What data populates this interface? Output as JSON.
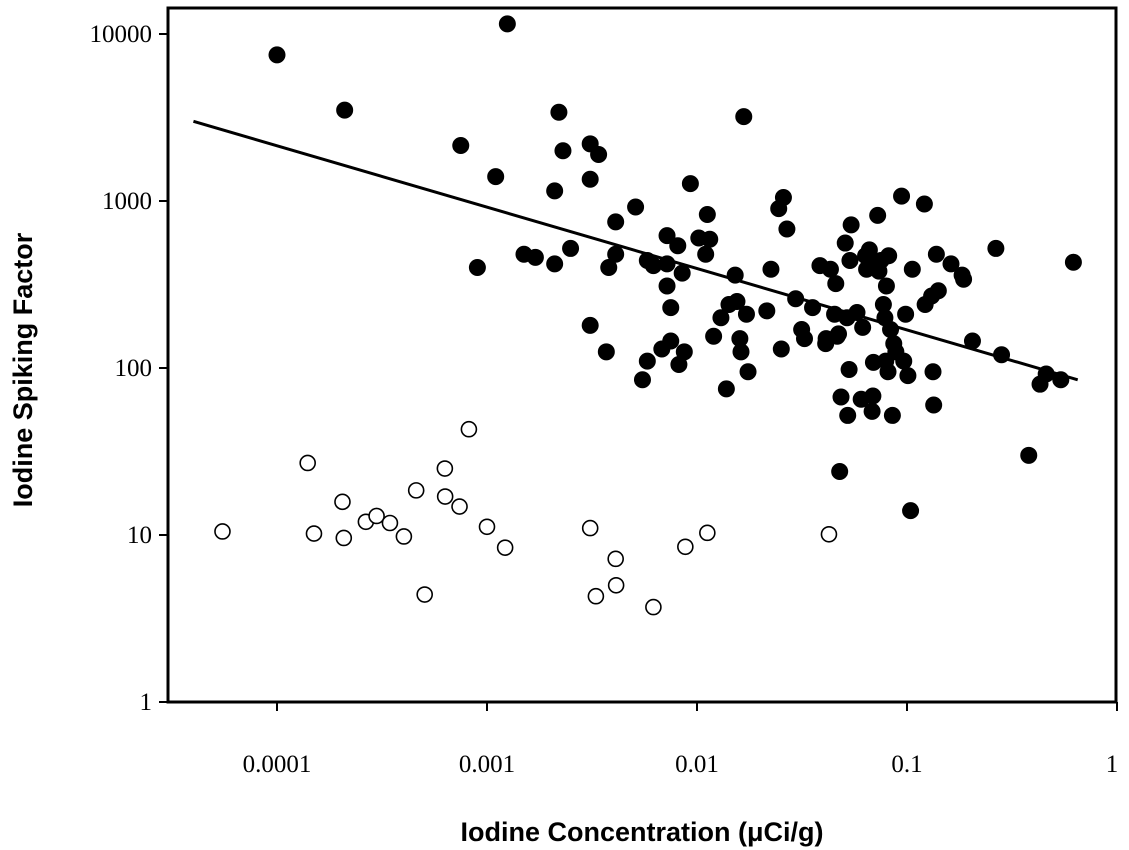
{
  "chart_data": {
    "type": "scatter",
    "xlabel": "Iodine Concentration (μCi/g)",
    "ylabel": "Iodine Spiking Factor",
    "x_scale": "log",
    "y_scale": "log",
    "xlim": [
      3e-05,
      1
    ],
    "ylim": [
      1,
      12000
    ],
    "x_ticks": [
      {
        "value": 0.0001,
        "label": "0.0001"
      },
      {
        "value": 0.001,
        "label": "0.001"
      },
      {
        "value": 0.01,
        "label": "0.01"
      },
      {
        "value": 0.1,
        "label": "0.1"
      },
      {
        "value": 1,
        "label": "1"
      }
    ],
    "y_ticks": [
      {
        "value": 1,
        "label": "1"
      },
      {
        "value": 10,
        "label": "10"
      },
      {
        "value": 100,
        "label": "100"
      },
      {
        "value": 1000,
        "label": "1000"
      },
      {
        "value": 10000,
        "label": "10000"
      }
    ],
    "grid": false,
    "legend": "none",
    "series": [
      {
        "marker": "filled-circle",
        "color": "#000000",
        "points": [
          [
            0.0001,
            7500
          ],
          [
            0.00021,
            3500
          ],
          [
            0.00075,
            2150
          ],
          [
            0.0009,
            400
          ],
          [
            0.0011,
            1400
          ],
          [
            0.00125,
            11500
          ],
          [
            0.0015,
            480
          ],
          [
            0.0017,
            460
          ],
          [
            0.0021,
            1150
          ],
          [
            0.0021,
            420
          ],
          [
            0.0022,
            3400
          ],
          [
            0.0023,
            2000
          ],
          [
            0.0025,
            520
          ],
          [
            0.0031,
            2200
          ],
          [
            0.0031,
            1350
          ],
          [
            0.0031,
            180
          ],
          [
            0.0034,
            1900
          ],
          [
            0.0037,
            125
          ],
          [
            0.0038,
            400
          ],
          [
            0.0041,
            750
          ],
          [
            0.0041,
            480
          ],
          [
            0.0051,
            920
          ],
          [
            0.0055,
            85
          ],
          [
            0.0058,
            440
          ],
          [
            0.0058,
            110
          ],
          [
            0.0062,
            410
          ],
          [
            0.0068,
            130
          ],
          [
            0.0072,
            620
          ],
          [
            0.0072,
            420
          ],
          [
            0.0072,
            310
          ],
          [
            0.0075,
            230
          ],
          [
            0.0075,
            145
          ],
          [
            0.0081,
            540
          ],
          [
            0.0082,
            105
          ],
          [
            0.0085,
            370
          ],
          [
            0.0087,
            125
          ],
          [
            0.0093,
            1270
          ],
          [
            0.0102,
            600
          ],
          [
            0.011,
            480
          ],
          [
            0.0112,
            830
          ],
          [
            0.0115,
            590
          ],
          [
            0.012,
            155
          ],
          [
            0.013,
            200
          ],
          [
            0.0138,
            75
          ],
          [
            0.0142,
            240
          ],
          [
            0.0152,
            360
          ],
          [
            0.0155,
            250
          ],
          [
            0.016,
            150
          ],
          [
            0.0162,
            125
          ],
          [
            0.0167,
            3200
          ],
          [
            0.0172,
            210
          ],
          [
            0.0175,
            95
          ],
          [
            0.0215,
            220
          ],
          [
            0.0225,
            390
          ],
          [
            0.0245,
            900
          ],
          [
            0.0252,
            130
          ],
          [
            0.0258,
            1050
          ],
          [
            0.0268,
            680
          ],
          [
            0.0295,
            260
          ],
          [
            0.0315,
            170
          ],
          [
            0.0325,
            150
          ],
          [
            0.0355,
            230
          ],
          [
            0.0385,
            410
          ],
          [
            0.041,
            140
          ],
          [
            0.0412,
            150
          ],
          [
            0.0432,
            390
          ],
          [
            0.0452,
            210
          ],
          [
            0.0458,
            320
          ],
          [
            0.0465,
            155
          ],
          [
            0.0472,
            160
          ],
          [
            0.0478,
            24
          ],
          [
            0.0485,
            67
          ],
          [
            0.0508,
            560
          ],
          [
            0.0518,
            200
          ],
          [
            0.0522,
            52
          ],
          [
            0.053,
            98
          ],
          [
            0.0535,
            440
          ],
          [
            0.0542,
            720
          ],
          [
            0.0578,
            215
          ],
          [
            0.0605,
            65
          ],
          [
            0.0615,
            175
          ],
          [
            0.0635,
            470
          ],
          [
            0.0642,
            390
          ],
          [
            0.0662,
            510
          ],
          [
            0.0672,
            420
          ],
          [
            0.0682,
            55
          ],
          [
            0.0688,
            68
          ],
          [
            0.0692,
            108
          ],
          [
            0.0725,
            820
          ],
          [
            0.0735,
            380
          ],
          [
            0.0752,
            440
          ],
          [
            0.0772,
            240
          ],
          [
            0.0785,
            200
          ],
          [
            0.0792,
            110
          ],
          [
            0.0798,
            310
          ],
          [
            0.0812,
            95
          ],
          [
            0.0818,
            470
          ],
          [
            0.0835,
            170
          ],
          [
            0.0852,
            52
          ],
          [
            0.0865,
            140
          ],
          [
            0.0885,
            125
          ],
          [
            0.0942,
            1070
          ],
          [
            0.0965,
            110
          ],
          [
            0.0985,
            210
          ],
          [
            0.101,
            90
          ],
          [
            0.104,
            14
          ],
          [
            0.106,
            390
          ],
          [
            0.121,
            960
          ],
          [
            0.122,
            240
          ],
          [
            0.131,
            270
          ],
          [
            0.133,
            95
          ],
          [
            0.134,
            60
          ],
          [
            0.138,
            480
          ],
          [
            0.141,
            290
          ],
          [
            0.162,
            420
          ],
          [
            0.183,
            360
          ],
          [
            0.186,
            340
          ],
          [
            0.205,
            145
          ],
          [
            0.265,
            520
          ],
          [
            0.282,
            120
          ],
          [
            0.38,
            30
          ],
          [
            0.43,
            80
          ],
          [
            0.46,
            92
          ],
          [
            0.54,
            85
          ],
          [
            0.62,
            430
          ]
        ]
      },
      {
        "marker": "open-circle",
        "color": "#000000",
        "points": [
          [
            5.5e-05,
            10.5
          ],
          [
            0.00014,
            27
          ],
          [
            0.00015,
            10.2
          ],
          [
            0.000205,
            15.8
          ],
          [
            0.000208,
            9.6
          ],
          [
            0.000265,
            12
          ],
          [
            0.000298,
            13
          ],
          [
            0.000345,
            11.8
          ],
          [
            0.000402,
            9.8
          ],
          [
            0.00046,
            18.5
          ],
          [
            0.000505,
            4.4
          ],
          [
            0.00063,
            25
          ],
          [
            0.000632,
            17
          ],
          [
            0.00074,
            14.8
          ],
          [
            0.00082,
            43
          ],
          [
            0.001,
            11.2
          ],
          [
            0.00122,
            8.4
          ],
          [
            0.0031,
            11
          ],
          [
            0.0033,
            4.3
          ],
          [
            0.0041,
            7.2
          ],
          [
            0.00412,
            5
          ],
          [
            0.0062,
            3.7
          ],
          [
            0.0088,
            8.5
          ],
          [
            0.0112,
            10.3
          ],
          [
            0.0425,
            10.1
          ]
        ]
      }
    ],
    "trendline": {
      "type": "power",
      "x": [
        4e-05,
        0.65
      ],
      "y": [
        3000,
        85
      ]
    }
  }
}
